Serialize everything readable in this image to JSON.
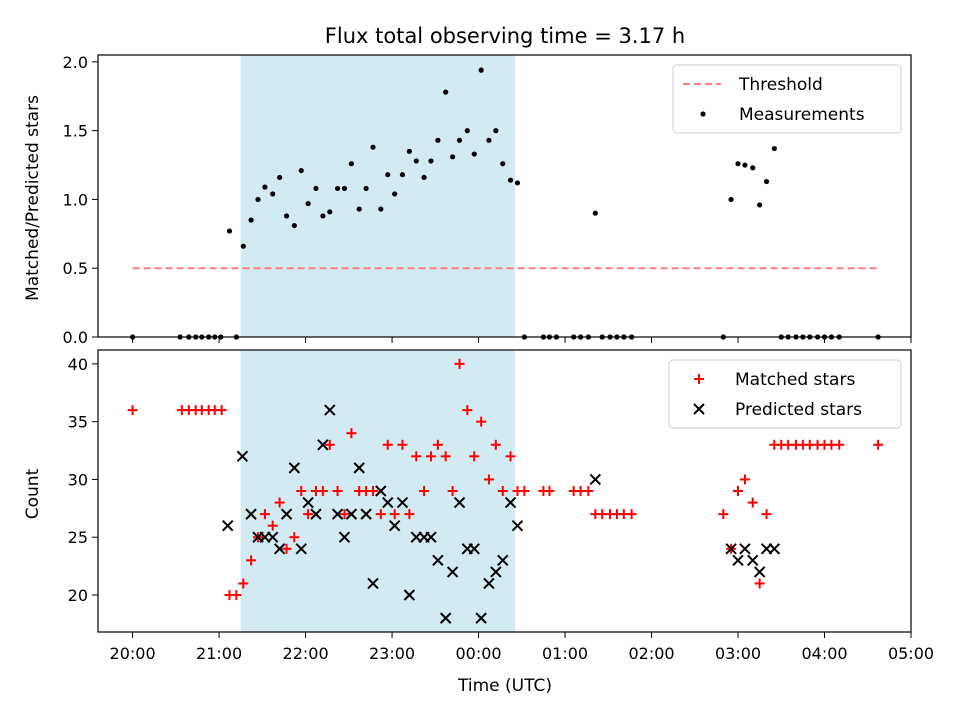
{
  "chart_data": {
    "title": "Flux total observing time = 3.17 h",
    "xlabel": "Time (UTC)",
    "x_unit": "hours (UTC clock)",
    "xlim": [
      19.6,
      29.0
    ],
    "xticks": [
      {
        "v": 20,
        "label": "20:00"
      },
      {
        "v": 21,
        "label": "21:00"
      },
      {
        "v": 22,
        "label": "22:00"
      },
      {
        "v": 23,
        "label": "23:00"
      },
      {
        "v": 24,
        "label": "00:00"
      },
      {
        "v": 25,
        "label": "01:00"
      },
      {
        "v": 26,
        "label": "02:00"
      },
      {
        "v": 27,
        "label": "03:00"
      },
      {
        "v": 28,
        "label": "04:00"
      },
      {
        "v": 29,
        "label": "05:00"
      }
    ],
    "span": {
      "start": 21.25,
      "end": 24.42,
      "color": "#add8e6"
    },
    "panels": [
      {
        "type": "scatter",
        "ylabel": "Matched/Predicted stars",
        "ylim": [
          0,
          2.05
        ],
        "yticks": [
          0.0,
          0.5,
          1.0,
          1.5,
          2.0
        ],
        "ytick_labels": [
          "0.0",
          "0.5",
          "1.0",
          "1.5",
          "2.0"
        ],
        "threshold": {
          "name": "Threshold",
          "value": 0.5,
          "x_range": [
            20.0,
            28.62
          ],
          "color": "#ff7f7f"
        },
        "series": [
          {
            "name": "Measurements",
            "color": "#000000",
            "marker": "dot",
            "points": [
              [
                20.0,
                0
              ],
              [
                20.55,
                0
              ],
              [
                20.65,
                0
              ],
              [
                20.73,
                0
              ],
              [
                20.8,
                0
              ],
              [
                20.88,
                0
              ],
              [
                20.95,
                0
              ],
              [
                21.02,
                0
              ],
              [
                21.12,
                0.77
              ],
              [
                21.2,
                0
              ],
              [
                21.28,
                0.66
              ],
              [
                21.37,
                0.85
              ],
              [
                21.45,
                1.0
              ],
              [
                21.53,
                1.09
              ],
              [
                21.62,
                1.04
              ],
              [
                21.7,
                1.16
              ],
              [
                21.78,
                0.88
              ],
              [
                21.87,
                0.81
              ],
              [
                21.95,
                1.21
              ],
              [
                22.03,
                0.97
              ],
              [
                22.12,
                1.08
              ],
              [
                22.2,
                0.88
              ],
              [
                22.28,
                0.91
              ],
              [
                22.37,
                1.08
              ],
              [
                22.45,
                1.08
              ],
              [
                22.53,
                1.26
              ],
              [
                22.62,
                0.93
              ],
              [
                22.7,
                1.08
              ],
              [
                22.78,
                1.38
              ],
              [
                22.87,
                0.93
              ],
              [
                22.95,
                1.18
              ],
              [
                23.03,
                1.04
              ],
              [
                23.12,
                1.18
              ],
              [
                23.2,
                1.35
              ],
              [
                23.28,
                1.28
              ],
              [
                23.37,
                1.16
              ],
              [
                23.45,
                1.28
              ],
              [
                23.53,
                1.43
              ],
              [
                23.62,
                1.78
              ],
              [
                23.7,
                1.31
              ],
              [
                23.78,
                1.43
              ],
              [
                23.87,
                1.5
              ],
              [
                23.95,
                1.33
              ],
              [
                24.03,
                1.94
              ],
              [
                24.12,
                1.43
              ],
              [
                24.2,
                1.5
              ],
              [
                24.28,
                1.26
              ],
              [
                24.37,
                1.14
              ],
              [
                24.45,
                1.12
              ],
              [
                24.53,
                0
              ],
              [
                24.75,
                0
              ],
              [
                24.82,
                0
              ],
              [
                24.9,
                0
              ],
              [
                25.1,
                0
              ],
              [
                25.18,
                0
              ],
              [
                25.27,
                0
              ],
              [
                25.35,
                0.9
              ],
              [
                25.43,
                0
              ],
              [
                25.52,
                0
              ],
              [
                25.6,
                0
              ],
              [
                25.68,
                0
              ],
              [
                25.77,
                0
              ],
              [
                26.83,
                0
              ],
              [
                26.92,
                1.0
              ],
              [
                27.0,
                1.26
              ],
              [
                27.08,
                1.25
              ],
              [
                27.17,
                1.23
              ],
              [
                27.25,
                0.96
              ],
              [
                27.33,
                1.13
              ],
              [
                27.42,
                1.37
              ],
              [
                27.5,
                0
              ],
              [
                27.58,
                0
              ],
              [
                27.67,
                0
              ],
              [
                27.75,
                0
              ],
              [
                27.83,
                0
              ],
              [
                27.92,
                0
              ],
              [
                28.0,
                0
              ],
              [
                28.08,
                0
              ],
              [
                28.17,
                0
              ],
              [
                28.62,
                0
              ]
            ]
          }
        ],
        "legend": {
          "position": "top-right",
          "entries": [
            "Threshold",
            "Measurements"
          ]
        }
      },
      {
        "type": "scatter",
        "ylabel": "Count",
        "ylim": [
          16.8,
          41.2
        ],
        "yticks": [
          20,
          25,
          30,
          35,
          40
        ],
        "ytick_labels": [
          "20",
          "25",
          "30",
          "35",
          "40"
        ],
        "series": [
          {
            "name": "Matched stars",
            "color": "#ff0000",
            "marker": "plus",
            "points": [
              [
                20.0,
                36
              ],
              [
                20.57,
                36
              ],
              [
                20.65,
                36
              ],
              [
                20.73,
                36
              ],
              [
                20.8,
                36
              ],
              [
                20.88,
                36
              ],
              [
                20.95,
                36
              ],
              [
                21.03,
                36
              ],
              [
                21.12,
                20
              ],
              [
                21.2,
                20
              ],
              [
                21.28,
                21
              ],
              [
                21.37,
                23
              ],
              [
                21.45,
                25
              ],
              [
                21.53,
                27
              ],
              [
                21.62,
                26
              ],
              [
                21.7,
                28
              ],
              [
                21.78,
                24
              ],
              [
                21.87,
                25
              ],
              [
                21.95,
                29
              ],
              [
                22.03,
                27
              ],
              [
                22.12,
                29
              ],
              [
                22.2,
                29
              ],
              [
                22.28,
                33
              ],
              [
                22.37,
                29
              ],
              [
                22.45,
                27
              ],
              [
                22.53,
                34
              ],
              [
                22.62,
                29
              ],
              [
                22.7,
                29
              ],
              [
                22.78,
                29
              ],
              [
                22.87,
                27
              ],
              [
                22.95,
                33
              ],
              [
                23.03,
                27
              ],
              [
                23.12,
                33
              ],
              [
                23.2,
                27
              ],
              [
                23.28,
                32
              ],
              [
                23.37,
                29
              ],
              [
                23.45,
                32
              ],
              [
                23.53,
                33
              ],
              [
                23.62,
                32
              ],
              [
                23.7,
                29
              ],
              [
                23.78,
                40
              ],
              [
                23.87,
                36
              ],
              [
                23.95,
                32
              ],
              [
                24.03,
                35
              ],
              [
                24.12,
                30
              ],
              [
                24.2,
                33
              ],
              [
                24.28,
                29
              ],
              [
                24.37,
                32
              ],
              [
                24.45,
                29
              ],
              [
                24.53,
                29
              ],
              [
                24.75,
                29
              ],
              [
                24.82,
                29
              ],
              [
                25.1,
                29
              ],
              [
                25.18,
                29
              ],
              [
                25.27,
                29
              ],
              [
                25.35,
                27
              ],
              [
                25.43,
                27
              ],
              [
                25.52,
                27
              ],
              [
                25.6,
                27
              ],
              [
                25.68,
                27
              ],
              [
                25.77,
                27
              ],
              [
                26.83,
                27
              ],
              [
                26.92,
                24
              ],
              [
                27.0,
                29
              ],
              [
                27.08,
                30
              ],
              [
                27.17,
                28
              ],
              [
                27.25,
                21
              ],
              [
                27.33,
                27
              ],
              [
                27.42,
                33
              ],
              [
                27.5,
                33
              ],
              [
                27.58,
                33
              ],
              [
                27.67,
                33
              ],
              [
                27.75,
                33
              ],
              [
                27.83,
                33
              ],
              [
                27.92,
                33
              ],
              [
                28.0,
                33
              ],
              [
                28.08,
                33
              ],
              [
                28.17,
                33
              ],
              [
                28.62,
                33
              ]
            ]
          },
          {
            "name": "Predicted stars",
            "color": "#000000",
            "marker": "x",
            "points": [
              [
                21.1,
                26
              ],
              [
                21.27,
                32
              ],
              [
                21.37,
                27
              ],
              [
                21.45,
                25
              ],
              [
                21.53,
                25
              ],
              [
                21.62,
                25
              ],
              [
                21.7,
                24
              ],
              [
                21.78,
                27
              ],
              [
                21.87,
                31
              ],
              [
                21.95,
                24
              ],
              [
                22.03,
                28
              ],
              [
                22.12,
                27
              ],
              [
                22.2,
                33
              ],
              [
                22.28,
                36
              ],
              [
                22.37,
                27
              ],
              [
                22.45,
                25
              ],
              [
                22.53,
                27
              ],
              [
                22.62,
                31
              ],
              [
                22.7,
                27
              ],
              [
                22.78,
                21
              ],
              [
                22.87,
                29
              ],
              [
                22.95,
                28
              ],
              [
                23.03,
                26
              ],
              [
                23.12,
                28
              ],
              [
                23.2,
                20
              ],
              [
                23.28,
                25
              ],
              [
                23.37,
                25
              ],
              [
                23.45,
                25
              ],
              [
                23.53,
                23
              ],
              [
                23.62,
                18
              ],
              [
                23.7,
                22
              ],
              [
                23.78,
                28
              ],
              [
                23.87,
                24
              ],
              [
                23.95,
                24
              ],
              [
                24.03,
                18
              ],
              [
                24.12,
                21
              ],
              [
                24.2,
                22
              ],
              [
                24.28,
                23
              ],
              [
                24.37,
                28
              ],
              [
                24.45,
                26
              ],
              [
                25.35,
                30
              ],
              [
                26.92,
                24
              ],
              [
                27.0,
                23
              ],
              [
                27.08,
                24
              ],
              [
                27.17,
                23
              ],
              [
                27.25,
                22
              ],
              [
                27.33,
                24
              ],
              [
                27.42,
                24
              ]
            ]
          }
        ],
        "legend": {
          "position": "top-right",
          "entries": [
            "Matched stars",
            "Predicted stars"
          ]
        }
      }
    ]
  }
}
